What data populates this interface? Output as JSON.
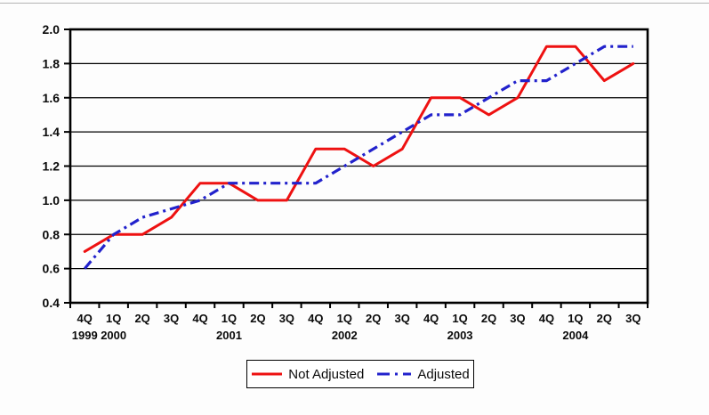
{
  "chart_data": {
    "type": "line",
    "title": "",
    "categories": [
      "4Q",
      "1Q",
      "2Q",
      "3Q",
      "4Q",
      "1Q",
      "2Q",
      "3Q",
      "4Q",
      "1Q",
      "2Q",
      "3Q",
      "4Q",
      "1Q",
      "2Q",
      "3Q",
      "4Q",
      "1Q",
      "2Q",
      "3Q"
    ],
    "year_labels": [
      {
        "index": 0,
        "label": "1999"
      },
      {
        "index": 1,
        "label": "2000"
      },
      {
        "index": 5,
        "label": "2001"
      },
      {
        "index": 9,
        "label": "2002"
      },
      {
        "index": 13,
        "label": "2003"
      },
      {
        "index": 17,
        "label": "2004"
      }
    ],
    "yticks": [
      "2.0",
      "1.8",
      "1.6",
      "1.4",
      "1.2",
      "1.0",
      "0.8",
      "0.6",
      "0.4"
    ],
    "ylim": [
      0.4,
      2.0
    ],
    "grid": true,
    "legend_position": "bottom",
    "series": [
      {
        "name": "Not Adjusted",
        "color": "#ee1111",
        "style": "solid",
        "values": [
          0.7,
          0.8,
          0.8,
          0.9,
          1.1,
          1.1,
          1.0,
          1.0,
          1.3,
          1.3,
          1.2,
          1.3,
          1.6,
          1.6,
          1.5,
          1.6,
          1.9,
          1.9,
          1.7,
          1.8
        ]
      },
      {
        "name": "Adjusted",
        "color": "#2222cc",
        "style": "dash-dot",
        "values": [
          0.6,
          0.8,
          0.9,
          0.95,
          1.0,
          1.1,
          1.1,
          1.1,
          1.1,
          1.2,
          1.3,
          1.4,
          1.5,
          1.5,
          1.6,
          1.7,
          1.7,
          1.8,
          1.9,
          1.9
        ]
      }
    ]
  }
}
